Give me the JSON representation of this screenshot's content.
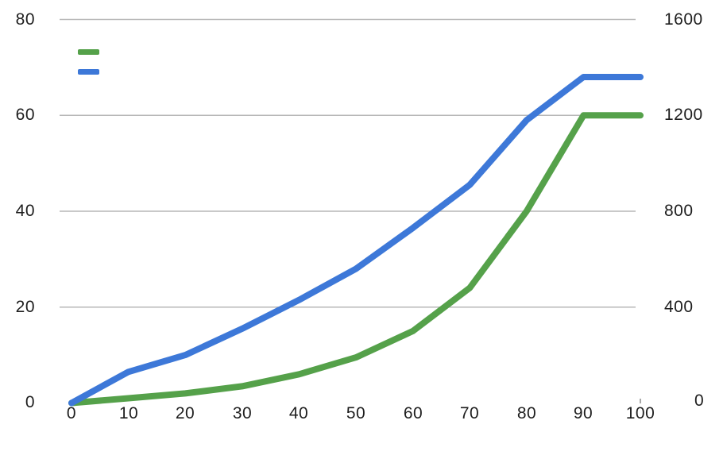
{
  "chart_data": {
    "type": "line",
    "title": "",
    "x": [
      0,
      10,
      20,
      30,
      40,
      50,
      60,
      70,
      80,
      90,
      100
    ],
    "series": [
      {
        "name": "green-series",
        "label": "",
        "color": "#55a14a",
        "axis": "left",
        "values": [
          0,
          1,
          2,
          3.5,
          6,
          9.5,
          15,
          24,
          40,
          60,
          60
        ]
      },
      {
        "name": "blue-series",
        "label": "",
        "color": "#3d78d8",
        "axis": "left",
        "values": [
          0,
          6.5,
          10,
          15.5,
          21.5,
          28,
          36.5,
          45.5,
          59,
          68,
          68
        ]
      }
    ],
    "axes": {
      "x": {
        "min": 0,
        "max": 100,
        "ticks": [
          "0",
          "10",
          "20",
          "30",
          "40",
          "50",
          "60",
          "70",
          "80",
          "90",
          "100"
        ]
      },
      "y_left": {
        "min": 0,
        "max": 80,
        "ticks": [
          "80",
          "60",
          "40",
          "20",
          "0"
        ]
      },
      "y_right": {
        "min": 0,
        "max": 1600,
        "ticks": [
          "1600",
          "1200",
          "800",
          "400",
          "0"
        ]
      }
    },
    "gridline_values": [
      80,
      60,
      40,
      20
    ],
    "grid_color": "#b7b7b7",
    "legend": {
      "position": "top-left",
      "entries": [
        {
          "color": "#55a14a",
          "label": ""
        },
        {
          "color": "#3d78d8",
          "label": ""
        }
      ]
    }
  }
}
